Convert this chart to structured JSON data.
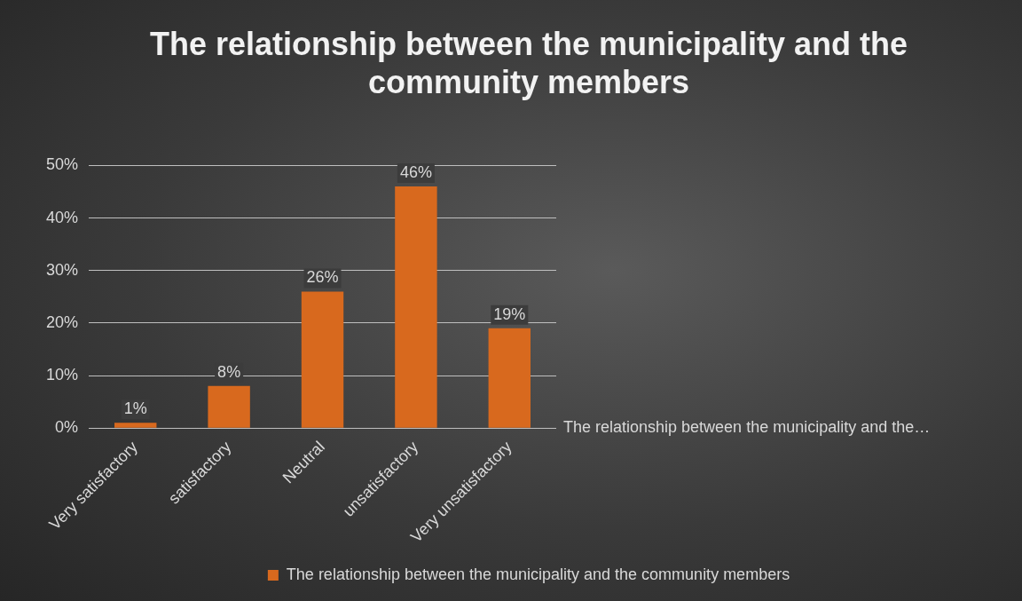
{
  "chart_data": {
    "type": "bar",
    "title": "The relationship between the municipality and the community members",
    "categories": [
      "Very satisfactory",
      "satisfactory",
      "Neutral",
      "unsatisfactory",
      "Very unsatisfactory"
    ],
    "series": [
      {
        "name": "The relationship between the municipality and the community members",
        "color": "#d8691e",
        "values": [
          1,
          8,
          26,
          46,
          19
        ],
        "value_labels": [
          "1%",
          "8%",
          "26%",
          "46%",
          "19%"
        ]
      }
    ],
    "ylim": [
      0,
      50
    ],
    "yticks": [
      {
        "value": 0,
        "label": "0%"
      },
      {
        "value": 10,
        "label": "10%"
      },
      {
        "value": 20,
        "label": "20%"
      },
      {
        "value": 30,
        "label": "30%"
      },
      {
        "value": 40,
        "label": "40%"
      },
      {
        "value": 50,
        "label": "50%"
      }
    ],
    "grid": "y",
    "legend": "bottom",
    "annotations": [
      "The relationship between the municipality and the…"
    ]
  }
}
